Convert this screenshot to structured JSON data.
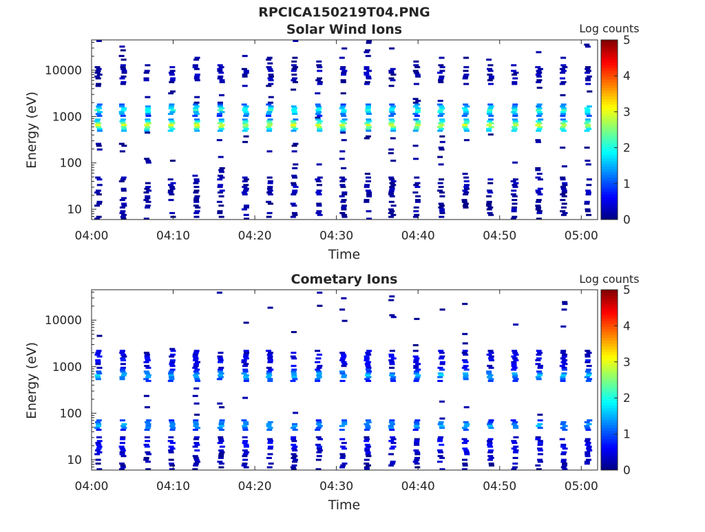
{
  "figure_title": "RPCICA150219T04.PNG",
  "panels": [
    {
      "title": "Solar Wind Ions",
      "xlabel": "Time",
      "ylabel": "Energy (eV)",
      "colorbar_label": "Log counts"
    },
    {
      "title": "Cometary Ions",
      "xlabel": "Time",
      "ylabel": "Energy (eV)",
      "colorbar_label": "Log counts"
    }
  ],
  "x_ticks": [
    "04:00",
    "04:10",
    "04:20",
    "04:30",
    "04:40",
    "04:50",
    "05:00"
  ],
  "y_ticks": [
    "10",
    "100",
    "1000",
    "10000"
  ],
  "colorbar_ticks": [
    "0",
    "1",
    "2",
    "3",
    "4",
    "5"
  ],
  "colormap": [
    "#00007f",
    "#0000ff",
    "#007fff",
    "#00ffff",
    "#7fff7f",
    "#ffff00",
    "#ff7f00",
    "#ff0000",
    "#7f0000"
  ],
  "chart_data": [
    {
      "type": "heatmap",
      "title": "Solar Wind Ions",
      "xlabel": "Time",
      "ylabel": "Energy (eV)",
      "y_scale": "log",
      "xlim": [
        "04:00",
        "05:02"
      ],
      "ylim": [
        6,
        45000
      ],
      "color_label": "Log counts",
      "color_range": [
        0,
        5
      ],
      "sweep_times": [
        "04:00",
        "04:03",
        "04:06",
        "04:09",
        "04:12",
        "04:15",
        "04:18",
        "04:21",
        "04:24",
        "04:27",
        "04:30",
        "04:33",
        "04:36",
        "04:39",
        "04:42",
        "04:45",
        "04:48",
        "04:51",
        "04:54",
        "04:57",
        "05:00"
      ],
      "bands": [
        {
          "energy_ev": 650,
          "log_counts": 3.0
        },
        {
          "energy_ev": 1400,
          "log_counts": 2.1
        },
        {
          "energy_ev": 8000,
          "log_counts": 0.2
        },
        {
          "energy_ev": 30,
          "log_counts": 0.2
        },
        {
          "energy_ev": 10,
          "log_counts": 0.1
        }
      ]
    },
    {
      "type": "heatmap",
      "title": "Cometary Ions",
      "xlabel": "Time",
      "ylabel": "Energy (eV)",
      "y_scale": "log",
      "xlim": [
        "04:00",
        "05:02"
      ],
      "ylim": [
        6,
        45000
      ],
      "color_label": "Log counts",
      "color_range": [
        0,
        5
      ],
      "sweep_times": [
        "04:00",
        "04:03",
        "04:06",
        "04:09",
        "04:12",
        "04:15",
        "04:18",
        "04:21",
        "04:24",
        "04:27",
        "04:30",
        "04:33",
        "04:36",
        "04:39",
        "04:42",
        "04:45",
        "04:48",
        "04:51",
        "04:54",
        "04:57",
        "05:00"
      ],
      "bands": [
        {
          "energy_ev": 650,
          "log_counts": 1.6
        },
        {
          "energy_ev": 1400,
          "log_counts": 0.6
        },
        {
          "energy_ev": 55,
          "log_counts": 1.5
        },
        {
          "energy_ev": 20,
          "log_counts": 0.6
        },
        {
          "energy_ev": 10,
          "log_counts": 0.2
        }
      ]
    }
  ]
}
